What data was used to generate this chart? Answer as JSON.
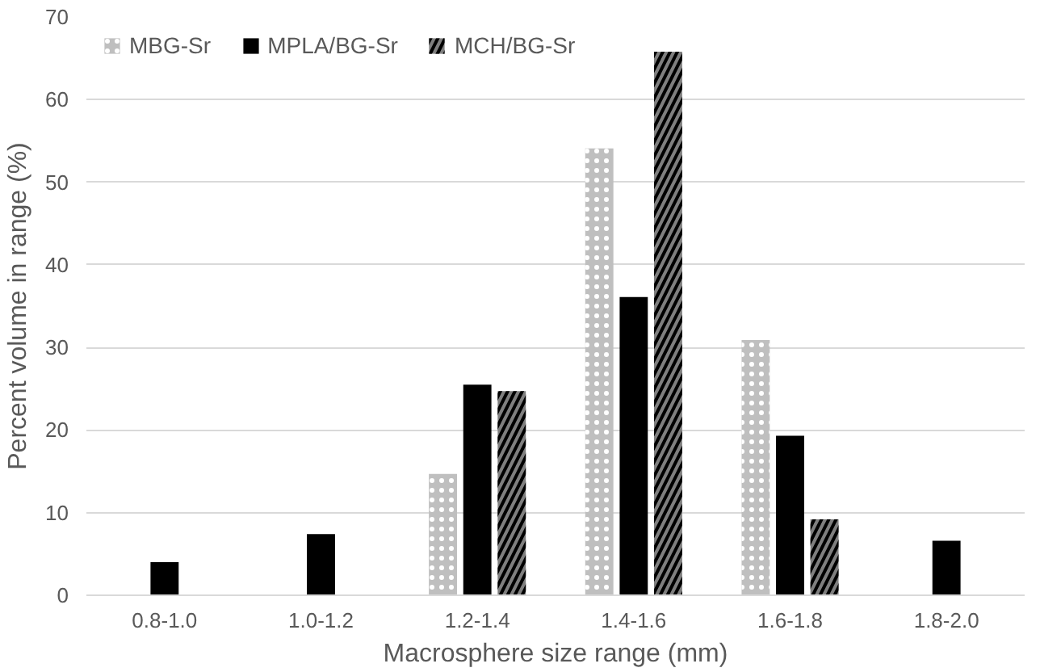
{
  "chart_data": {
    "type": "bar",
    "xlabel": "Macrosphere size range (mm)",
    "ylabel": "Percent volume in range (%)",
    "categories": [
      "0.8-1.0",
      "1.0-1.2",
      "1.2-1.4",
      "1.4-1.6",
      "1.6-1.8",
      "1.8-2.0"
    ],
    "series": [
      {
        "name": "MBG-Sr",
        "color": "#bfbfbf",
        "values": [
          null,
          null,
          14.7,
          54.1,
          30.9,
          null
        ]
      },
      {
        "name": "MPLA/BG-Sr",
        "color": "#000000",
        "values": [
          4.0,
          7.4,
          25.5,
          36.1,
          19.3,
          6.6
        ]
      },
      {
        "name": "MCH/BG-Sr",
        "color": "#7f7f7f",
        "values": [
          null,
          null,
          24.7,
          65.8,
          9.2,
          null
        ]
      }
    ],
    "ylim": [
      0,
      70
    ],
    "yticks": [
      0,
      10,
      20,
      30,
      40,
      50,
      60,
      70
    ],
    "grid": "y",
    "legend": "top left"
  }
}
